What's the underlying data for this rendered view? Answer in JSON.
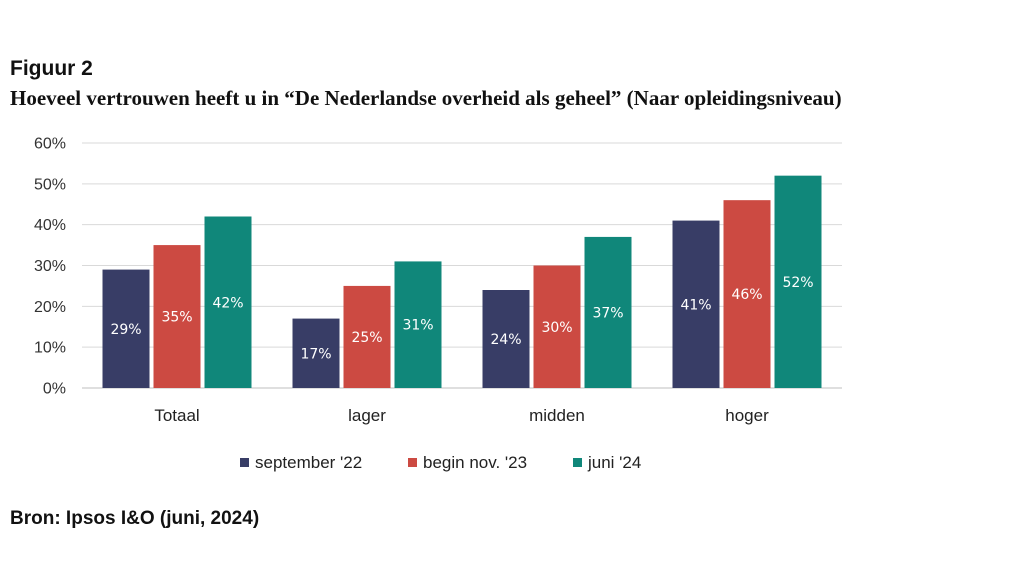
{
  "figure_label": "Figuur 2",
  "title": "Hoeveel vertrouwen heeft u in “De Nederlandse overheid als geheel” (Naar opleidingsniveau)",
  "source": "Bron: Ipsos I&O (juni, 2024)",
  "chart_data": {
    "type": "bar",
    "title": "Hoeveel vertrouwen heeft u in “De Nederlandse overheid als geheel” (Naar opleidingsniveau)",
    "categories": [
      "Totaal",
      "lager",
      "midden",
      "hoger"
    ],
    "series": [
      {
        "name": "september '22",
        "color": "#383d66",
        "values": [
          29,
          17,
          24,
          41
        ],
        "labels": [
          "29%",
          "17%",
          "24%",
          "41%"
        ]
      },
      {
        "name": "begin nov. '23",
        "color": "#cc4a42",
        "values": [
          35,
          25,
          30,
          46
        ],
        "labels": [
          "35%",
          "25%",
          "30%",
          "46%"
        ]
      },
      {
        "name": "juni '24",
        "color": "#10877a",
        "values": [
          42,
          31,
          37,
          52
        ],
        "labels": [
          "42%",
          "31%",
          "37%",
          "52%"
        ]
      }
    ],
    "ylim": [
      0,
      60
    ],
    "yticks": [
      0,
      10,
      20,
      30,
      40,
      50,
      60
    ],
    "ytick_labels": [
      "0%",
      "10%",
      "20%",
      "30%",
      "40%",
      "50%",
      "60%"
    ],
    "xlabel": "",
    "ylabel": "",
    "grid": true,
    "legend_position": "bottom"
  }
}
